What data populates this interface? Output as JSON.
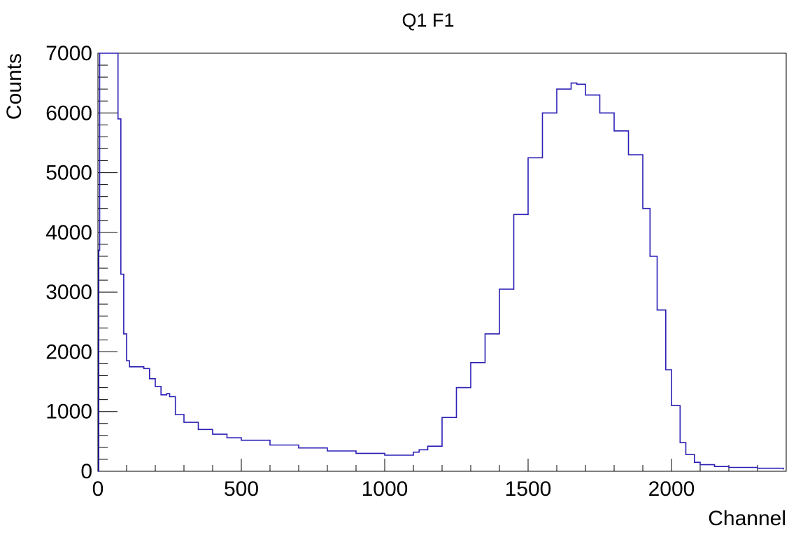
{
  "chart_data": {
    "type": "line",
    "title": "Q1 F1",
    "xlabel": "Channel",
    "ylabel": "Counts",
    "xlim": [
      0,
      2400
    ],
    "ylim": [
      0,
      7000
    ],
    "x_ticks": [
      0,
      500,
      1000,
      1500,
      2000
    ],
    "y_ticks": [
      0,
      1000,
      2000,
      3000,
      4000,
      5000,
      6000,
      7000
    ],
    "grid": false,
    "legend": "none",
    "series": [
      {
        "color": "#2a1fb5",
        "x": [
          0,
          3,
          6,
          10,
          15,
          20,
          30,
          40,
          50,
          60,
          65,
          70,
          80,
          90,
          100,
          110,
          120,
          140,
          160,
          180,
          200,
          220,
          240,
          250,
          270,
          300,
          350,
          400,
          450,
          500,
          600,
          700,
          800,
          900,
          1000,
          1050,
          1100,
          1120,
          1150,
          1200,
          1250,
          1300,
          1350,
          1400,
          1450,
          1500,
          1550,
          1600,
          1650,
          1670,
          1700,
          1750,
          1800,
          1850,
          1900,
          1925,
          1950,
          1980,
          2000,
          2030,
          2050,
          2080,
          2100,
          2150,
          2200,
          2300,
          2390
        ],
        "y": [
          0,
          3700,
          7000,
          7000,
          7000,
          7000,
          7000,
          7000,
          7000,
          7000,
          7000,
          5900,
          3300,
          2300,
          1850,
          1750,
          1750,
          1750,
          1720,
          1550,
          1420,
          1280,
          1300,
          1250,
          950,
          820,
          700,
          620,
          560,
          520,
          440,
          390,
          340,
          300,
          270,
          270,
          320,
          360,
          420,
          900,
          1400,
          1820,
          2300,
          3050,
          4300,
          5250,
          6000,
          6400,
          6500,
          6480,
          6300,
          6000,
          5700,
          5300,
          4400,
          3600,
          2700,
          1700,
          1100,
          480,
          280,
          150,
          110,
          80,
          65,
          50,
          30
        ]
      }
    ]
  }
}
